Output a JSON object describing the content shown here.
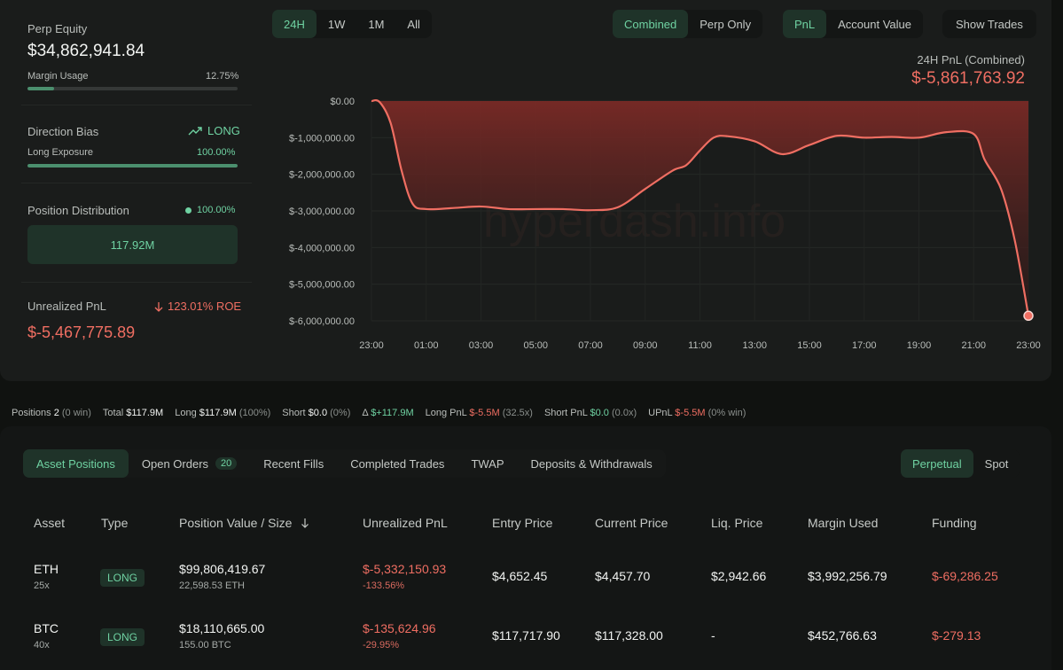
{
  "stats": {
    "perp_equity_label": "Perp Equity",
    "perp_equity_value": "$34,862,941.84",
    "margin_usage_label": "Margin Usage",
    "margin_usage_value": "12.75%",
    "margin_usage_fraction": 0.1275,
    "direction_bias_label": "Direction Bias",
    "direction_bias_value": "LONG",
    "long_exposure_label": "Long Exposure",
    "long_exposure_value": "100.00%",
    "long_exposure_fraction": 1.0,
    "position_distribution_label": "Position Distribution",
    "position_distribution_value": "100.00%",
    "position_distribution_box": "117.92M",
    "unrealized_pnl_label": "Unrealized PnL",
    "unrealized_pnl_roe": "123.01% ROE",
    "unrealized_pnl_value": "$-5,467,775.89"
  },
  "controls": {
    "ranges": [
      "24H",
      "1W",
      "1M",
      "All"
    ],
    "range_active": "24H",
    "modes": [
      "Combined",
      "Perp Only"
    ],
    "mode_active": "Combined",
    "metrics": [
      "PnL",
      "Account Value"
    ],
    "metric_active": "PnL",
    "show_trades": "Show Trades"
  },
  "chart_header": {
    "title": "24H PnL (Combined)",
    "value": "$-5,861,763.92"
  },
  "watermark": "hyperdash.info",
  "chart_data": {
    "type": "area",
    "x_tick_labels": [
      "23:00",
      "01:00",
      "03:00",
      "05:00",
      "07:00",
      "09:00",
      "11:00",
      "13:00",
      "15:00",
      "17:00",
      "19:00",
      "21:00",
      "23:00"
    ],
    "y_tick_labels": [
      "$0.00",
      "$-1,000,000.00",
      "$-2,000,000.00",
      "$-3,000,000.00",
      "$-4,000,000.00",
      "$-5,000,000.00",
      "$-6,000,000.00"
    ],
    "ylim": [
      -6000000,
      0
    ],
    "x_hours": [
      0,
      0.3,
      0.7,
      1.1,
      1.5,
      2,
      3,
      4,
      5,
      6,
      7,
      8,
      9,
      10,
      11,
      11.5,
      12,
      12.5,
      13,
      14,
      15,
      16,
      17,
      18,
      19,
      20,
      21,
      22,
      22.4,
      23,
      23.5,
      24
    ],
    "values": [
      0,
      -30000,
      -600000,
      -1900000,
      -2800000,
      -2950000,
      -2920000,
      -2880000,
      -2950000,
      -2950000,
      -2950000,
      -2980000,
      -2900000,
      -2400000,
      -1900000,
      -1750000,
      -1350000,
      -1000000,
      -960000,
      -1100000,
      -1450000,
      -1200000,
      -950000,
      -1000000,
      -980000,
      -1000000,
      -850000,
      -900000,
      -1600000,
      -2400000,
      -3800000,
      -5861763.92
    ],
    "grid": true,
    "color": "#ef6e62"
  },
  "summary": {
    "positions_label": "Positions",
    "positions_value": "2",
    "positions_win": "(0 win)",
    "total_label": "Total",
    "total_value": "$117.9M",
    "long_label": "Long",
    "long_value": "$117.9M",
    "long_pct": "(100%)",
    "short_label": "Short",
    "short_value": "$0.0",
    "short_pct": "(0%)",
    "delta_label": "Δ",
    "delta_value": "$+117.9M",
    "long_pnl_label": "Long PnL",
    "long_pnl_value": "$-5.5M",
    "long_pnl_lev": "(32.5x)",
    "short_pnl_label": "Short PnL",
    "short_pnl_value": "$0.0",
    "short_pnl_lev": "(0.0x)",
    "upnl_label": "UPnL",
    "upnl_value": "$-5.5M",
    "upnl_win": "(0% win)"
  },
  "tabs": {
    "asset_positions": "Asset Positions",
    "open_orders": "Open Orders",
    "open_orders_count": "20",
    "recent_fills": "Recent Fills",
    "completed_trades": "Completed Trades",
    "twap": "TWAP",
    "deposits": "Deposits & Withdrawals",
    "perpetual": "Perpetual",
    "spot": "Spot"
  },
  "table": {
    "headers": {
      "asset": "Asset",
      "type": "Type",
      "position_value": "Position Value / Size",
      "unrealized_pnl": "Unrealized PnL",
      "entry_price": "Entry Price",
      "current_price": "Current Price",
      "liq_price": "Liq. Price",
      "margin_used": "Margin Used",
      "funding": "Funding"
    },
    "rows": [
      {
        "asset": "ETH",
        "leverage": "25x",
        "type": "LONG",
        "value": "$99,806,419.67",
        "size": "22,598.53 ETH",
        "upnl": "$-5,332,150.93",
        "upnl_pct": "-133.56%",
        "entry": "$4,652.45",
        "current": "$4,457.70",
        "liq": "$2,942.66",
        "margin": "$3,992,256.79",
        "funding": "$-69,286.25"
      },
      {
        "asset": "BTC",
        "leverage": "40x",
        "type": "LONG",
        "value": "$18,110,665.00",
        "size": "155.00 BTC",
        "upnl": "$-135,624.96",
        "upnl_pct": "-29.95%",
        "entry": "$117,717.90",
        "current": "$117,328.00",
        "liq": "-",
        "margin": "$452,766.63",
        "funding": "$-279.13"
      }
    ]
  }
}
